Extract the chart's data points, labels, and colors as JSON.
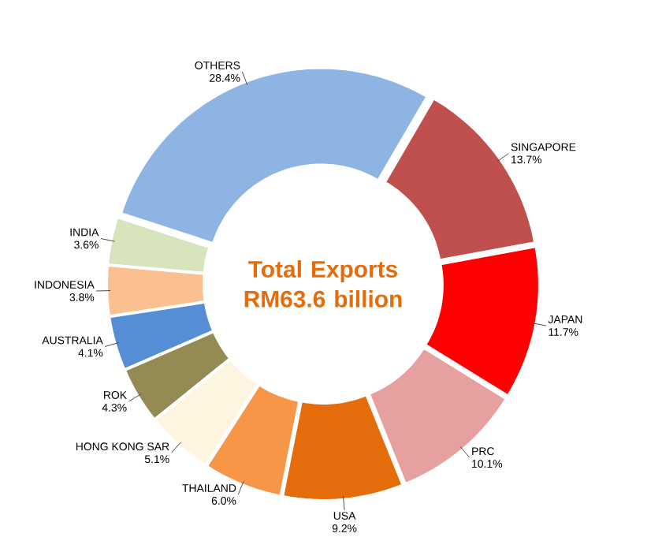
{
  "chart_data": {
    "type": "donut",
    "title": "Total Exports RM63.6 billion",
    "categories": [
      "OTHERS",
      "SINGAPORE",
      "JAPAN",
      "PRC",
      "USA",
      "THAILAND",
      "HONG KONG SAR",
      "ROK",
      "AUSTRALIA",
      "INDONESIA",
      "INDIA"
    ],
    "values": [
      28.4,
      13.7,
      11.7,
      10.1,
      9.2,
      6.0,
      5.1,
      4.3,
      4.1,
      3.8,
      3.6
    ],
    "value_labels": [
      "28.4%",
      "13.7%",
      "11.7%",
      "10.1%",
      "9.2%",
      "6.0%",
      "5.1%",
      "4.3%",
      "4.1%",
      "3.8%",
      "3.6%"
    ],
    "colors": [
      "#8db4e2",
      "#c0504d",
      "#ff0000",
      "#e6a0a0",
      "#e46c0a",
      "#f79646",
      "#fdf5e0",
      "#948a54",
      "#558ed5",
      "#fac090",
      "#d7e4bc"
    ]
  }
}
